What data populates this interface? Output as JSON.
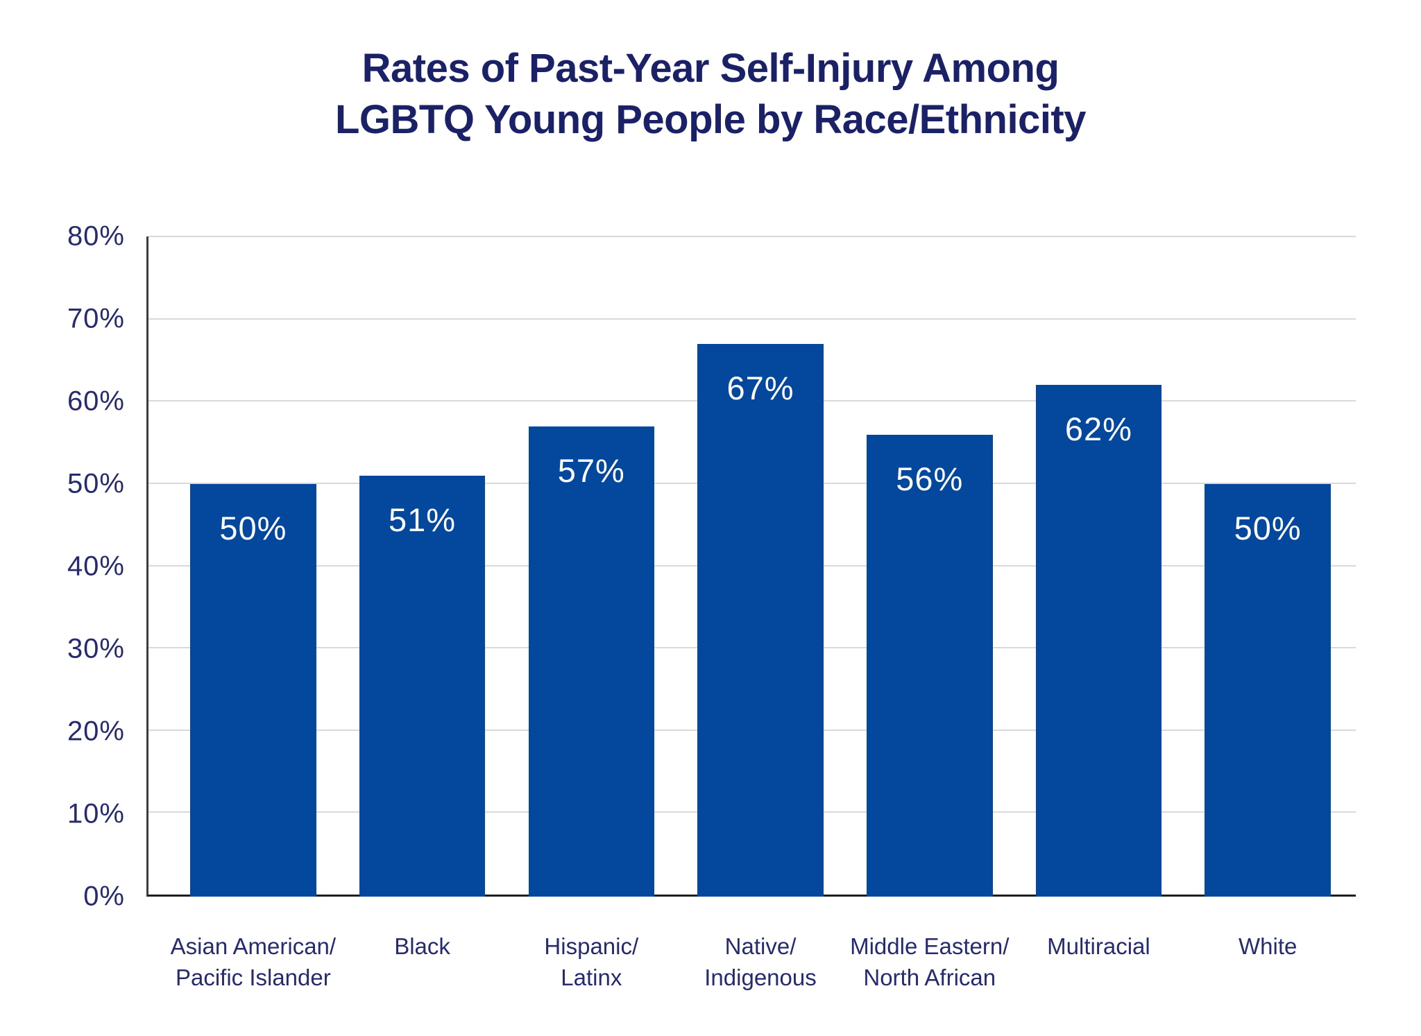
{
  "title": {
    "line1": "Rates of Past-Year Self-Injury Among",
    "line2": "LGBTQ Young People by Race/Ethnicity"
  },
  "chart_data": {
    "type": "bar",
    "title": "Rates of Past-Year Self-Injury Among LGBTQ Young People by Race/Ethnicity",
    "categories": [
      "Asian American/\nPacific Islander",
      "Black",
      "Hispanic/\nLatinx",
      "Native/\nIndigenous",
      "Middle Eastern/\nNorth African",
      "Multiracial",
      "White"
    ],
    "values": [
      50,
      51,
      57,
      67,
      56,
      62,
      50
    ],
    "value_labels": [
      "50%",
      "51%",
      "57%",
      "67%",
      "56%",
      "62%",
      "50%"
    ],
    "xlabel": "",
    "ylabel": "",
    "ylim": [
      0,
      80
    ],
    "ytick_step": 10,
    "ytick_labels": [
      "0%",
      "10%",
      "20%",
      "30%",
      "40%",
      "50%",
      "60%",
      "70%",
      "80%"
    ],
    "grid": true,
    "legend": "none",
    "colors": {
      "bar": "#04489E",
      "bar_value_text": "#FFFFFF",
      "title_text": "#1B2166",
      "axis_text": "#272B6D",
      "gridline": "#D9D9D9",
      "y_axis_line": "#3D3D3D",
      "baseline": "#1E1E1E",
      "background": "#FFFFFF"
    }
  }
}
